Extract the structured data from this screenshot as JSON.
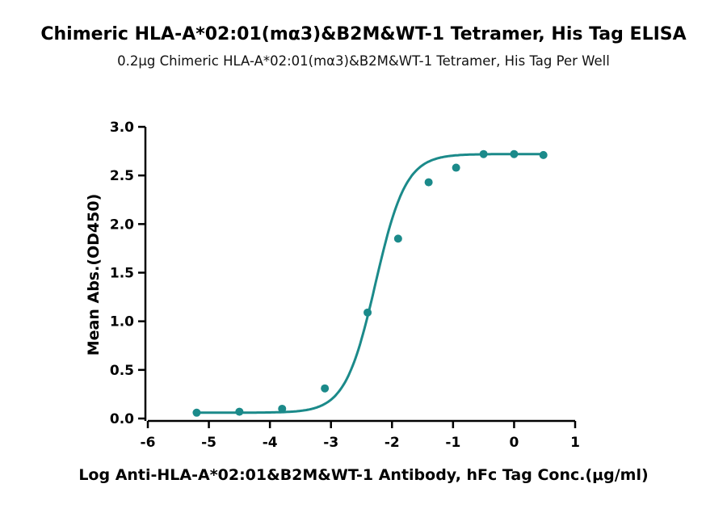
{
  "chart_data": {
    "type": "scatter",
    "title": "Chimeric HLA-A*02:01(mα3)&B2M&WT-1 Tetramer, His Tag ELISA",
    "subtitle": "0.2μg Chimeric HLA-A*02:01(mα3)&B2M&WT-1 Tetramer, His Tag Per Well",
    "xlabel": "Log Anti-HLA-A*02:01&B2M&WT-1 Antibody, hFc Tag Conc.(μg/ml)",
    "ylabel": "Mean Abs.(OD450)",
    "xlim": [
      -6,
      1
    ],
    "ylim": [
      0,
      3.0
    ],
    "x_ticks": [
      "-6",
      "-5",
      "-4",
      "-3",
      "-2",
      "-1",
      "0",
      "1"
    ],
    "y_ticks": [
      "0.0",
      "0.5",
      "1.0",
      "1.5",
      "2.0",
      "2.5",
      "3.0"
    ],
    "color": "#1b8a8a",
    "series": [
      {
        "x": [
          -5.2,
          -4.5,
          -3.8,
          -3.1,
          -2.4,
          -1.9,
          -1.4,
          -0.95,
          -0.5,
          0.0,
          0.48
        ],
        "y": [
          0.06,
          0.07,
          0.1,
          0.31,
          1.09,
          1.85,
          2.43,
          2.58,
          2.72,
          2.72,
          2.71
        ]
      }
    ],
    "fit_curve": {
      "bottom": 0.06,
      "top": 2.72,
      "log_ec50": -2.27,
      "hill_slope": 1.75
    }
  }
}
